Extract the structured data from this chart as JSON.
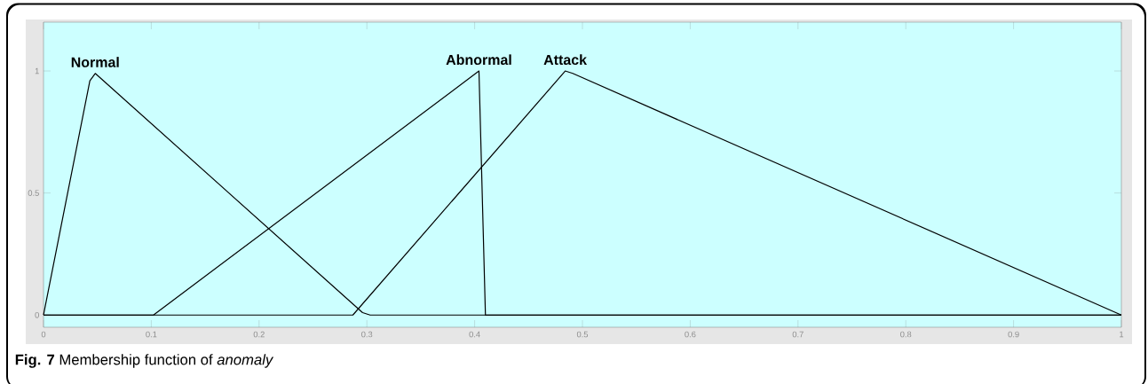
{
  "chart_data": {
    "type": "line",
    "xlim": [
      0,
      1
    ],
    "ylim": [
      -0.05,
      1.2
    ],
    "xticks": [
      0,
      0.1,
      0.2,
      0.3,
      0.4,
      0.5,
      0.6,
      0.7,
      0.8,
      0.9,
      1
    ],
    "yticks": [
      0,
      0.5,
      1
    ],
    "series": [
      {
        "name": "Normal",
        "color": "#000000",
        "x": [
          0,
          0.043,
          0.048,
          0.296,
          0.303,
          1
        ],
        "values": [
          0,
          0.96,
          0.99,
          0.01,
          0,
          0
        ]
      },
      {
        "name": "Abnormal",
        "color": "#000000",
        "x": [
          0,
          0.102,
          0.404,
          0.41,
          1
        ],
        "values": [
          0,
          0,
          1,
          0,
          0
        ]
      },
      {
        "name": "Attack",
        "color": "#000000",
        "x": [
          0,
          0.287,
          0.484,
          0.491,
          1
        ],
        "values": [
          0,
          0,
          1,
          0.99,
          0
        ]
      }
    ],
    "annotations": [
      "**Fig. 7** Membership function of *anomaly*"
    ]
  }
}
